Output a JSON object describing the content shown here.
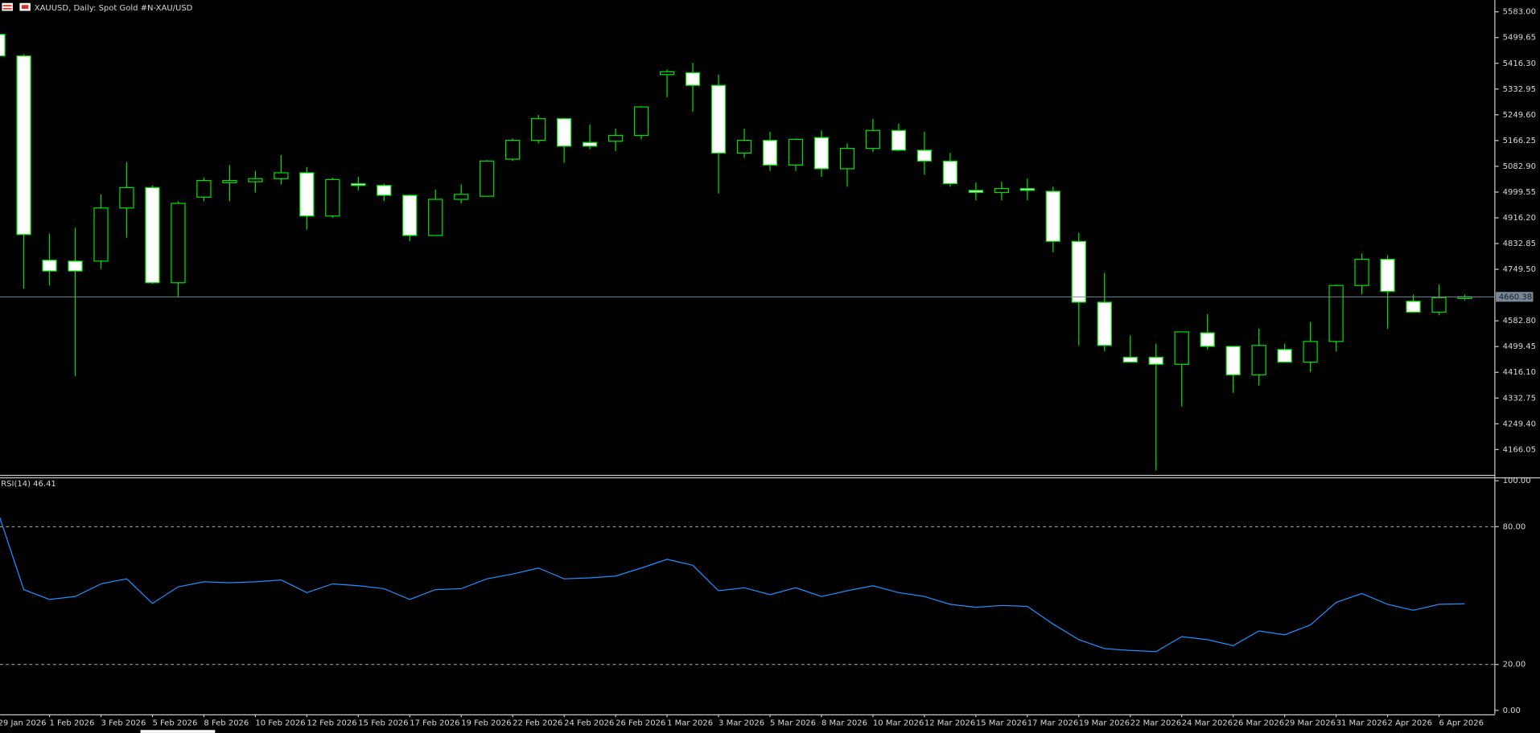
{
  "chart_data": [
    {
      "type": "candlestick",
      "title": "XAUUSD, Daily:  Spot Gold #N-XAU/USD",
      "categories": [
        "29 Jan 2026",
        null,
        "1 Feb 2026",
        null,
        "3 Feb 2026",
        null,
        "5 Feb 2026",
        null,
        "8 Feb 2026",
        null,
        "10 Feb 2026",
        null,
        "12 Feb 2026",
        null,
        "15 Feb 2026",
        null,
        "17 Feb 2026",
        null,
        "19 Feb 2026",
        null,
        "22 Feb 2026",
        null,
        "24 Feb 2026",
        null,
        "26 Feb 2026",
        null,
        "1 Mar 2026",
        null,
        "3 Mar 2026",
        null,
        "5 Mar 2026",
        null,
        "8 Mar 2026",
        null,
        "10 Mar 2026",
        null,
        "12 Mar 2026",
        null,
        "15 Mar 2026",
        null,
        "17 Mar 2026",
        null,
        "19 Mar 2026",
        null,
        "22 Mar 2026",
        null,
        "24 Mar 2026",
        null,
        "26 Mar 2026",
        null,
        "29 Mar 2026",
        null,
        "31 Mar 2026",
        null,
        "2 Apr 2026",
        null,
        "6 Apr 2026",
        null
      ],
      "open": [
        5510,
        5440,
        4779,
        4776,
        4776,
        4948,
        5014,
        4706,
        4983,
        5030,
        5033,
        5043,
        5062,
        4922,
        5027,
        5021,
        4989,
        4859,
        4976,
        4986,
        5106,
        5167,
        5237,
        5160,
        5164,
        5183,
        5380,
        5386,
        5345,
        5126,
        5167,
        5087,
        5176,
        5075,
        5141,
        5199,
        5135,
        5100,
        5005,
        4998,
        5011,
        5002,
        4840,
        4643,
        4465,
        4465,
        4442,
        4544,
        4500,
        4408,
        4490,
        4449,
        4516,
        4697,
        4782,
        4646,
        4611,
        4655
      ],
      "high": [
        5513,
        5446,
        4865,
        4884,
        4992,
        5097,
        5021,
        4970,
        5046,
        5087,
        5068,
        5119,
        5081,
        5046,
        5049,
        5027,
        4992,
        5008,
        5024,
        5103,
        5173,
        5249,
        5240,
        5218,
        5205,
        5278,
        5396,
        5418,
        5380,
        5205,
        5195,
        5173,
        5199,
        5157,
        5237,
        5221,
        5195,
        5126,
        5030,
        5033,
        5043,
        5017,
        4868,
        4738,
        4535,
        4509,
        4547,
        4604,
        4500,
        4557,
        4509,
        4579,
        4700,
        4801,
        4795,
        4668,
        4700,
        4668
      ],
      "low": [
        5437,
        4687,
        4697,
        4404,
        4751,
        4852,
        4703,
        4662,
        4970,
        4970,
        4998,
        5024,
        4878,
        4916,
        5005,
        4970,
        4840,
        4859,
        4963,
        4986,
        5100,
        5157,
        5094,
        5138,
        5132,
        5170,
        5307,
        5259,
        4995,
        5110,
        5068,
        5068,
        5049,
        5017,
        5129,
        5132,
        5056,
        5017,
        4973,
        4973,
        4973,
        4805,
        4503,
        4484,
        4449,
        4099,
        4306,
        4490,
        4350,
        4373,
        4449,
        4417,
        4484,
        4668,
        4557,
        4611,
        4601,
        4649
      ],
      "close": [
        5440,
        4862,
        4744,
        4744,
        4948,
        5014,
        4706,
        4963,
        5037,
        5037,
        5043,
        5062,
        4922,
        5040,
        5021,
        4989,
        4859,
        4976,
        4992,
        5100,
        5167,
        5237,
        5148,
        5148,
        5183,
        5275,
        5389,
        5345,
        5126,
        5167,
        5087,
        5170,
        5075,
        5141,
        5199,
        5135,
        5100,
        5027,
        4998,
        5011,
        5005,
        4840,
        4643,
        4503,
        4449,
        4442,
        4547,
        4500,
        4408,
        4503,
        4449,
        4516,
        4697,
        4782,
        4678,
        4611,
        4658,
        4660.38
      ],
      "ylim": [
        4084,
        5621
      ],
      "yticks": [
        {
          "value": 5583,
          "label": "5583.00"
        },
        5499.65,
        {
          "value": 5416.3,
          "label": "5416.30"
        },
        5332.95,
        {
          "value": 5249.6,
          "label": "5249.60"
        },
        5166.25,
        {
          "value": 5082.9,
          "label": "5082.90"
        },
        4999.55,
        {
          "value": 4916.2,
          "label": "4916.20"
        },
        4832.85,
        {
          "value": 4749.5,
          "label": "4749.50"
        },
        {
          "value": 4582.8,
          "label": "4582.80"
        },
        4499.45,
        {
          "value": 4416.1,
          "label": "4416.10"
        },
        4332.75,
        {
          "value": 4249.4,
          "label": "4249.40"
        },
        4166.05
      ],
      "current_price": 4660.38,
      "color": "#00e000",
      "bull_fill": "#000000",
      "bear_fill": "#ffffff",
      "price_line_color": "#778899"
    },
    {
      "type": "line",
      "title": "RSI(14) 46.41",
      "values": [
        86.3,
        52.6,
        48.3,
        49.6,
        55.1,
        57.3,
        46.6,
        53.8,
        56,
        55.6,
        56,
        56.8,
        51.3,
        55.1,
        54.3,
        53,
        48.3,
        52.6,
        53,
        57.3,
        59.4,
        62,
        57.3,
        57.7,
        58.5,
        62,
        65.8,
        63.2,
        52.1,
        53.4,
        50.4,
        53.4,
        49.6,
        52.1,
        54.3,
        51.3,
        49.6,
        46.2,
        44.9,
        45.7,
        45.3,
        37.6,
        30.8,
        26.9,
        26.1,
        25.6,
        32.1,
        30.8,
        28.2,
        34.6,
        32.9,
        37.2,
        47,
        50.9,
        46.2,
        43.6,
        46.2,
        46.41
      ],
      "ylim": [
        0,
        100
      ],
      "yticks": [
        {
          "value": 100,
          "label": "100.00"
        },
        {
          "value": 80,
          "label": "80.00"
        },
        {
          "value": 20,
          "label": "20.00"
        },
        {
          "value": 0,
          "label": "0.00"
        }
      ],
      "color": "#1e90ff",
      "level_style": "dashed"
    }
  ]
}
